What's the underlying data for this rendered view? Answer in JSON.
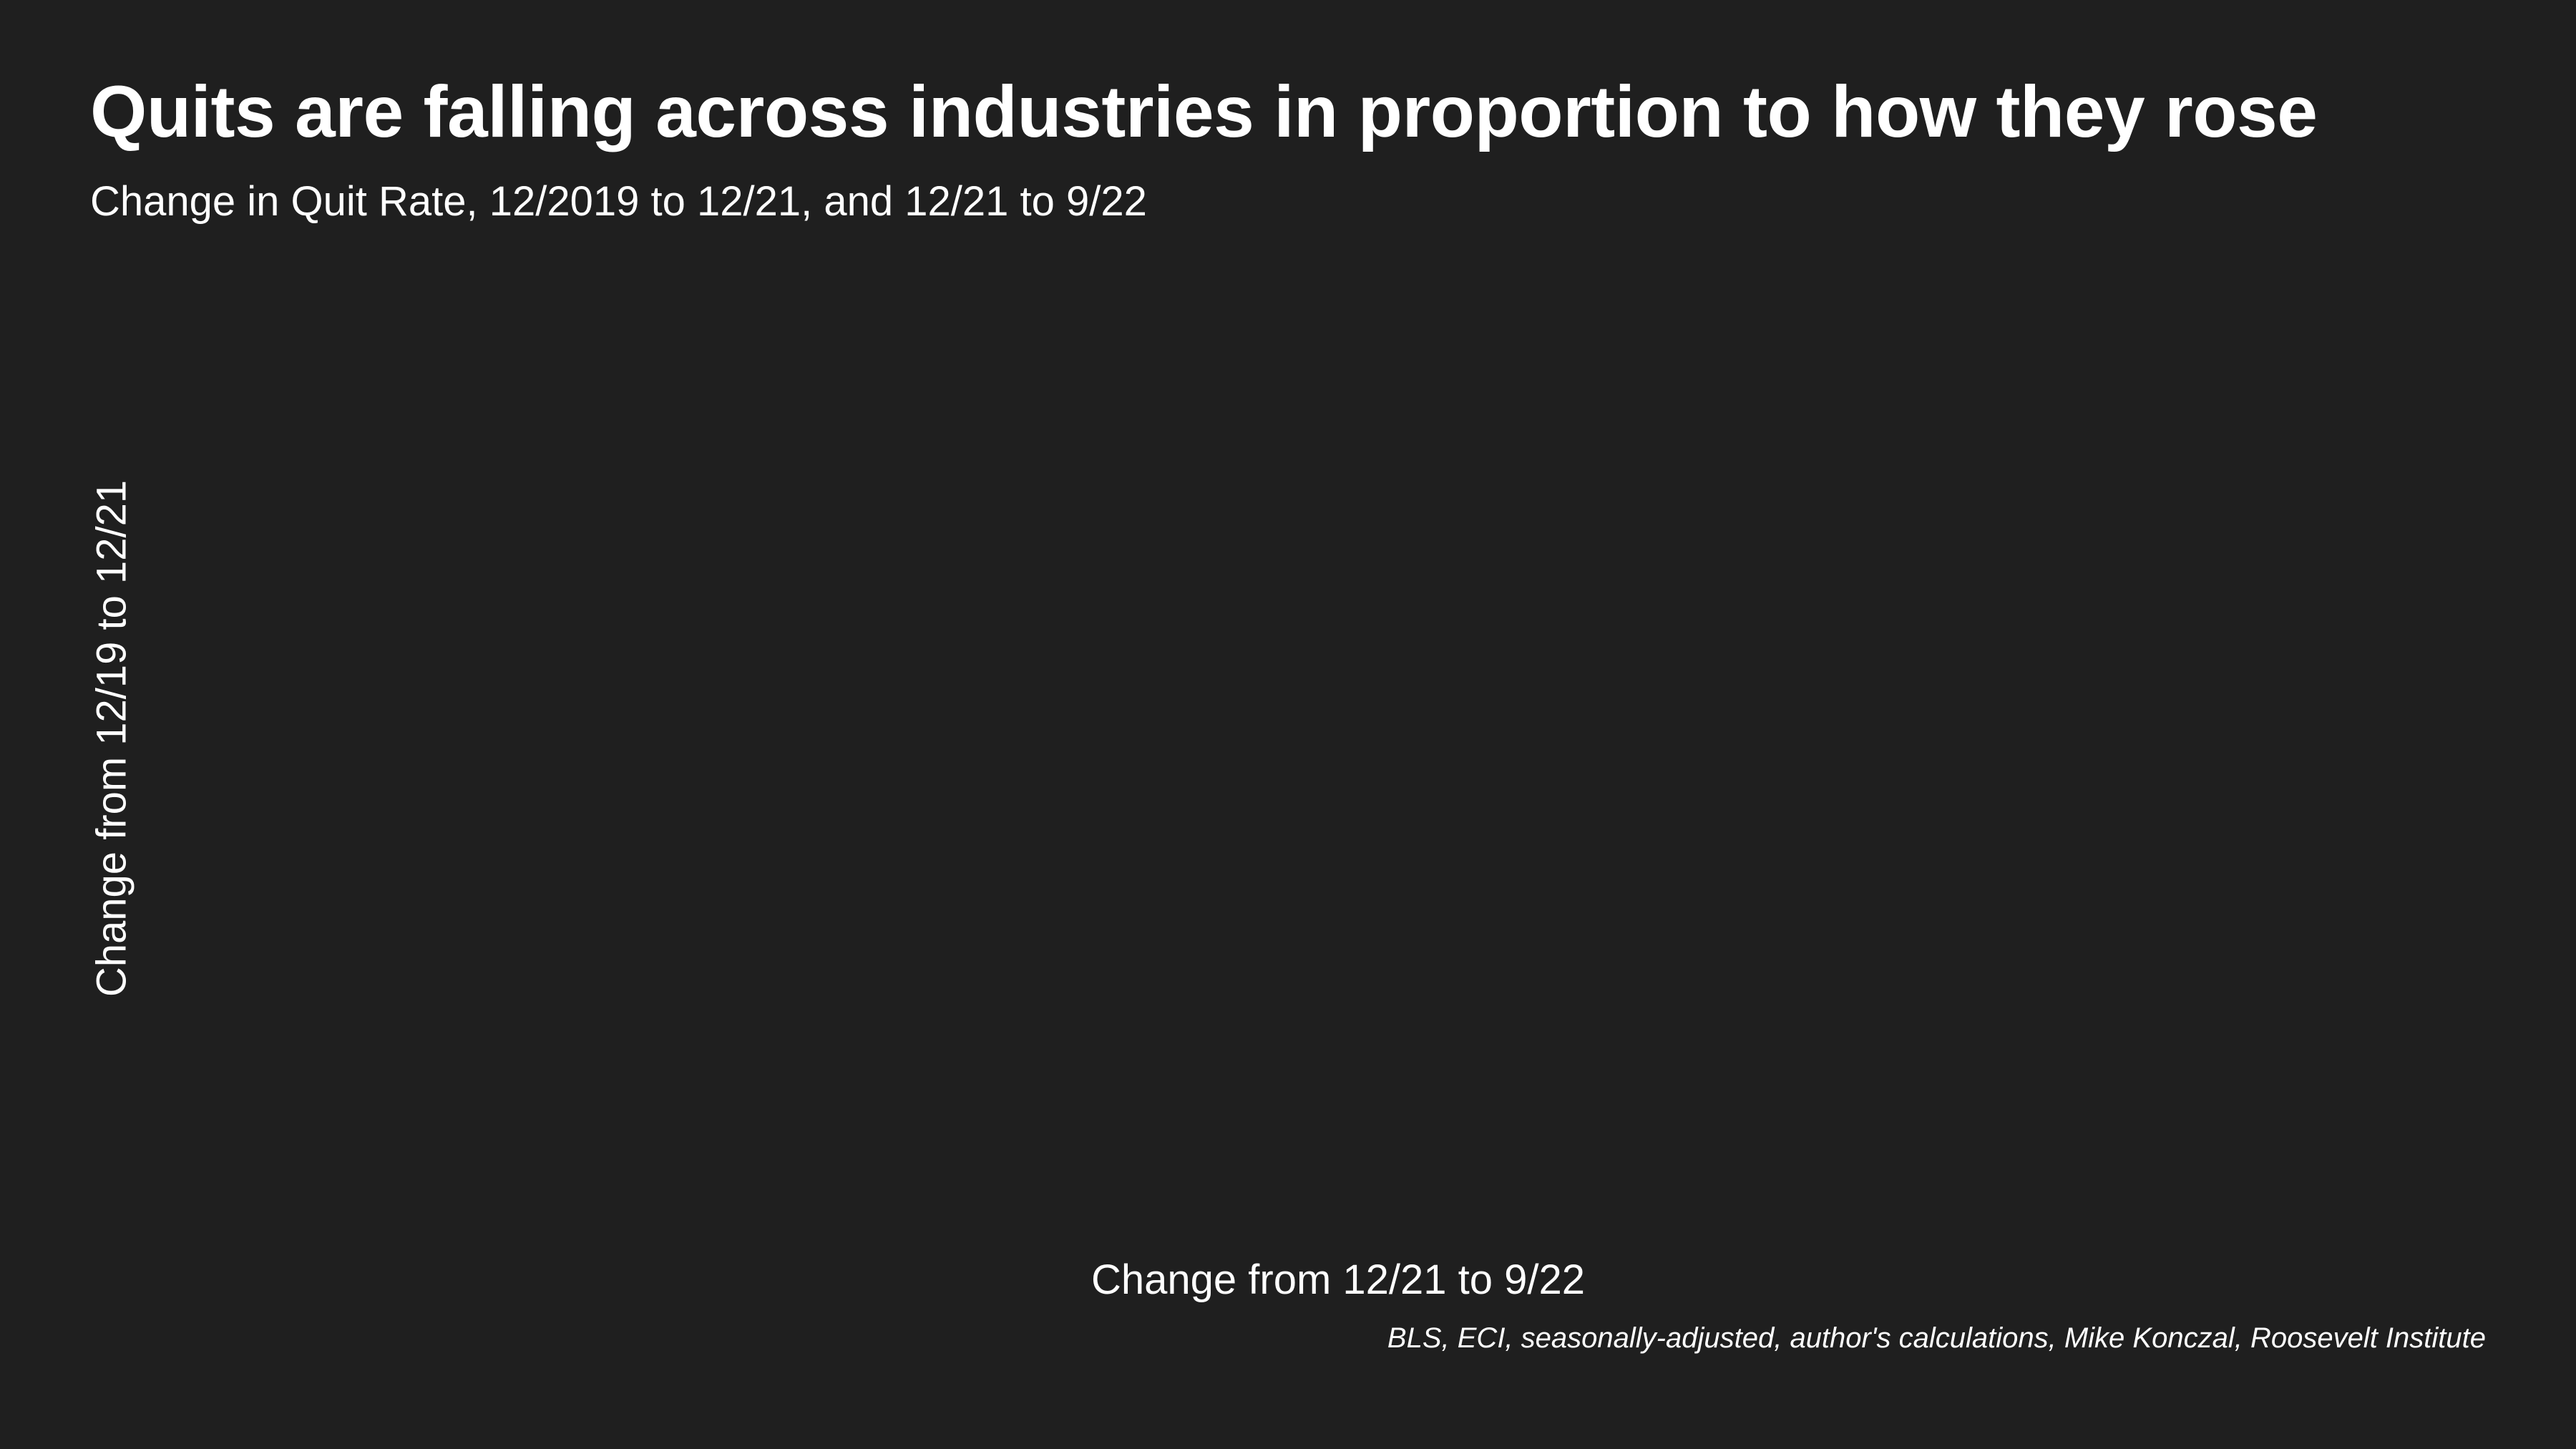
{
  "chart_data": {
    "type": "scatter",
    "title": "Quits are falling across industries in proportion to how they rose",
    "subtitle": "Change in Quit Rate, 12/2019 to 12/21, and 12/21 to 9/22",
    "xlabel": "Change from 12/21 to 9/22",
    "ylabel": "Change from 12/19 to 12/21",
    "source": "BLS, ECI, seasonally-adjusted, author's calculations, Mike Konczal, Roosevelt Institute",
    "series": [],
    "grid": false
  }
}
